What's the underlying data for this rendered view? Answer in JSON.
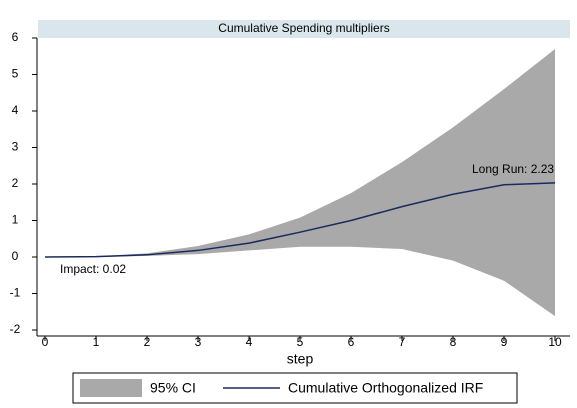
{
  "chart_data": {
    "type": "line",
    "title": "Cumulative Spending multipliers",
    "x_label": "step",
    "x": [
      0,
      1,
      2,
      3,
      4,
      5,
      6,
      7,
      8,
      9,
      10
    ],
    "series": [
      {
        "name": "95% CI",
        "kind": "band",
        "color": "#a9a9a9",
        "upper": [
          0,
          0.02,
          0.1,
          0.3,
          0.62,
          1.08,
          1.75,
          2.6,
          3.55,
          4.6,
          5.7
        ],
        "lower": [
          0,
          0,
          0.03,
          0.08,
          0.18,
          0.28,
          0.28,
          0.22,
          -0.1,
          -0.65,
          -1.62
        ]
      },
      {
        "name": "Cumulative Orthogonalized IRF",
        "color": "#1a2a5e",
        "values": [
          0,
          0.01,
          0.06,
          0.18,
          0.38,
          0.68,
          1.0,
          1.38,
          1.72,
          1.98,
          2.03
        ]
      }
    ],
    "annotations": [
      "Impact: 0.02",
      "Long Run: 2.23"
    ],
    "xlim": [
      0,
      10
    ],
    "xticks": [
      0,
      1,
      2,
      3,
      4,
      5,
      6,
      7,
      8,
      9,
      10
    ],
    "ylim": [
      -2,
      6
    ],
    "yticks": [
      -2,
      -1,
      0,
      1,
      2,
      3,
      4,
      5,
      6
    ],
    "legend": "bottom"
  }
}
